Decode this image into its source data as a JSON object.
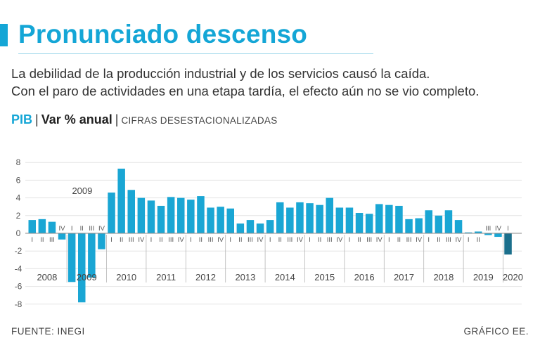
{
  "header": {
    "title": "Pronunciado descenso",
    "subtitle_lines": [
      "La debilidad de la producción industrial y de los servicios causó la caída.",
      "Con el paro de actividades en una etapa tardía, el efecto aún no se vio completo."
    ],
    "measure": {
      "indicator": "PIB",
      "separator": "|",
      "unit": "Var % anual",
      "note": "CIFRAS DESESTACIONALIZADAS"
    }
  },
  "chart_data": {
    "type": "bar",
    "title": "PIB | Var % anual",
    "ylim": [
      -8,
      8
    ],
    "yticks": [
      8,
      6,
      4,
      2,
      0,
      -2,
      -4,
      -6,
      -8
    ],
    "grid": true,
    "series_color": "#1aa6d4",
    "highlight_color": "#1b6f8c",
    "annotations": [
      {
        "text": "2009",
        "category_index": 4
      }
    ],
    "categories": [
      "2008-I",
      "2008-II",
      "2008-III",
      "2008-IV",
      "2009-I",
      "2009-II",
      "2009-III",
      "2009-IV",
      "2010-I",
      "2010-II",
      "2010-III",
      "2010-IV",
      "2011-I",
      "2011-II",
      "2011-III",
      "2011-IV",
      "2012-I",
      "2012-II",
      "2012-III",
      "2012-IV",
      "2013-I",
      "2013-II",
      "2013-III",
      "2013-IV",
      "2014-I",
      "2014-II",
      "2014-III",
      "2014-IV",
      "2015-I",
      "2015-II",
      "2015-III",
      "2015-IV",
      "2016-I",
      "2016-II",
      "2016-III",
      "2016-IV",
      "2017-I",
      "2017-II",
      "2017-III",
      "2017-IV",
      "2018-I",
      "2018-II",
      "2018-III",
      "2018-IV",
      "2019-I",
      "2019-II",
      "2019-III",
      "2019-IV",
      "2020-I"
    ],
    "quarter_labels": [
      "I",
      "II",
      "III",
      "IV"
    ],
    "values": [
      1.5,
      1.6,
      1.3,
      -0.7,
      -5.5,
      -7.8,
      -5.0,
      -1.8,
      4.6,
      7.3,
      4.9,
      4.0,
      3.7,
      3.1,
      4.1,
      4.0,
      3.8,
      4.2,
      2.9,
      3.0,
      2.8,
      1.1,
      1.5,
      1.1,
      1.5,
      3.5,
      2.9,
      3.5,
      3.4,
      3.2,
      4.0,
      2.9,
      2.9,
      2.3,
      2.2,
      3.3,
      3.2,
      3.1,
      1.6,
      1.7,
      2.6,
      2.0,
      2.6,
      1.5,
      0.1,
      0.2,
      -0.2,
      -0.4,
      -2.4
    ],
    "years": [
      "2008",
      "2009",
      "2010",
      "2011",
      "2012",
      "2013",
      "2014",
      "2015",
      "2016",
      "2017",
      "2018",
      "2019",
      "2020"
    ]
  },
  "footer": {
    "source": "FUENTE: INEGI",
    "credit": "GRÁFICO EE."
  }
}
